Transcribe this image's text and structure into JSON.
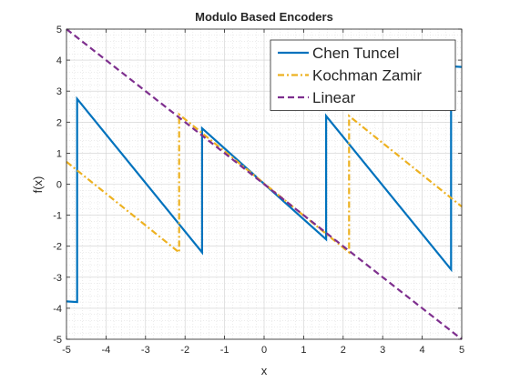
{
  "chart_data": {
    "type": "line",
    "title": "Modulo Based Encoders",
    "xlabel": "x",
    "ylabel": "f(x)",
    "xlim": [
      -5,
      5
    ],
    "ylim": [
      -5,
      5
    ],
    "xticks": [
      -5,
      -4,
      -3,
      -2,
      -1,
      0,
      1,
      2,
      3,
      4,
      5
    ],
    "yticks": [
      -5,
      -4,
      -3,
      -2,
      -1,
      0,
      1,
      2,
      3,
      4,
      5
    ],
    "grid": "on, with minor grid",
    "legend_position": "top-right",
    "series": [
      {
        "name": "Chen Tuncel",
        "color": "#0072BD",
        "style": "solid",
        "points": [
          [
            -5,
            -3.78
          ],
          [
            -4.73,
            -3.8
          ],
          [
            -4.73,
            2.75
          ],
          [
            -1.57,
            -2.2
          ],
          [
            -1.57,
            1.8
          ],
          [
            1.57,
            -1.78
          ],
          [
            1.57,
            2.2
          ],
          [
            4.73,
            -2.75
          ],
          [
            4.73,
            3.8
          ],
          [
            5,
            3.78
          ]
        ]
      },
      {
        "name": "Kochman Zamir",
        "color": "#EDB120",
        "style": "dash-dot",
        "points": [
          [
            -5,
            0.72
          ],
          [
            -2.15,
            -2.2
          ],
          [
            -2.15,
            2.25
          ],
          [
            2.15,
            -2.2
          ],
          [
            2.15,
            2.2
          ],
          [
            5,
            -0.72
          ]
        ]
      },
      {
        "name": "Linear",
        "color": "#7E2F8E",
        "style": "dashed",
        "points": [
          [
            -5,
            5
          ],
          [
            5,
            -5
          ]
        ]
      }
    ]
  }
}
